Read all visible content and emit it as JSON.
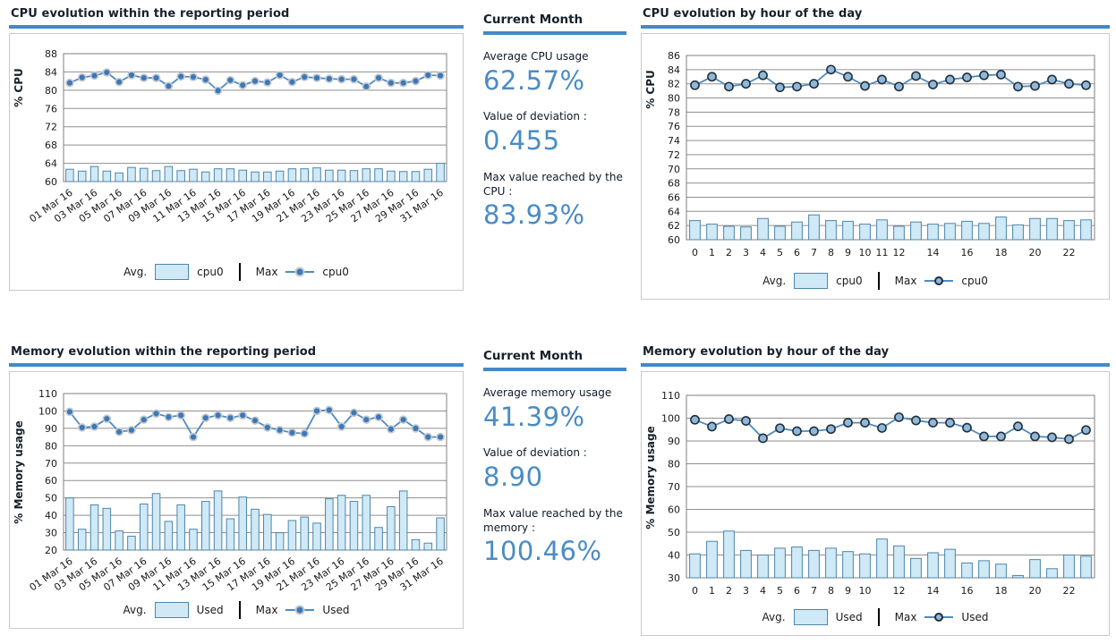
{
  "colors": {
    "accent": "#4389c7",
    "title_text": "#16202b",
    "stat_value_text": "#4a8cc4",
    "bar_fill": "#cfe9f7",
    "bar_stroke": "#4e86a8",
    "line": "#4f8bc0",
    "marker_blue": "#3c78b8",
    "marker_halo": "#c4c9ce",
    "marker_light": "#8fb8da",
    "marker_ring": "#212e3a",
    "grid": "#8f8f8f",
    "panel_border": "#c9c9c9"
  },
  "chart_data": [
    {
      "id": "cpu_period",
      "type": "bar+line",
      "title": "CPU evolution within the reporting period",
      "ylabel": "% CPU",
      "ylim": [
        60,
        88
      ],
      "ytick_step": 4,
      "grid": true,
      "legend": {
        "avg_label": "Avg.",
        "max_label": "Max",
        "position": "bottom"
      },
      "categories": [
        "01 Mar 16",
        "02 Mar 16",
        "03 Mar 16",
        "04 Mar 16",
        "05 Mar 16",
        "06 Mar 16",
        "07 Mar 16",
        "08 Mar 16",
        "09 Mar 16",
        "10 Mar 16",
        "11 Mar 16",
        "12 Mar 16",
        "13 Mar 16",
        "14 Mar 16",
        "15 Mar 16",
        "16 Mar 16",
        "17 Mar 16",
        "18 Mar 16",
        "19 Mar 16",
        "20 Mar 16",
        "21 Mar 16",
        "22 Mar 16",
        "23 Mar 16",
        "24 Mar 16",
        "25 Mar 16",
        "26 Mar 16",
        "27 Mar 16",
        "28 Mar 16",
        "29 Mar 16",
        "30 Mar 16",
        "31 Mar 16"
      ],
      "xtick_labels": [
        "01 Mar 16",
        "03 Mar 16",
        "05 Mar 16",
        "07 Mar 16",
        "09 Mar 16",
        "11 Mar 16",
        "13 Mar 16",
        "15 Mar 16",
        "17 Mar 16",
        "19 Mar 16",
        "21 Mar 16",
        "23 Mar 16",
        "25 Mar 16",
        "27 Mar 16",
        "29 Mar 16",
        "31 Mar 16"
      ],
      "series": [
        {
          "name": "cpu0",
          "role": "avg",
          "type": "bar",
          "values": [
            62.7,
            62.3,
            63.3,
            62.3,
            61.9,
            63.1,
            62.9,
            62.4,
            63.3,
            62.4,
            62.7,
            62.1,
            62.8,
            62.8,
            62.5,
            62.1,
            62.1,
            62.3,
            62.8,
            62.8,
            63.0,
            62.5,
            62.5,
            62.4,
            62.8,
            62.8,
            62.3,
            62.2,
            62.2,
            62.7,
            64.0
          ]
        },
        {
          "name": "cpu0",
          "role": "max",
          "type": "line",
          "values": [
            81.6,
            82.8,
            83.2,
            83.9,
            81.8,
            83.3,
            82.7,
            82.7,
            80.9,
            83.0,
            82.9,
            82.3,
            79.9,
            82.2,
            81.1,
            82.0,
            81.7,
            83.3,
            81.8,
            82.9,
            82.7,
            82.5,
            82.4,
            82.4,
            80.8,
            82.7,
            81.6,
            81.6,
            82.0,
            83.3,
            83.2
          ]
        }
      ]
    },
    {
      "id": "cpu_hour",
      "type": "bar+line",
      "title": "CPU evolution by hour of the day",
      "ylabel": "% CPU",
      "ylim": [
        60,
        86
      ],
      "ytick_step": 2,
      "grid": true,
      "legend": {
        "avg_label": "Avg.",
        "max_label": "Max",
        "position": "bottom"
      },
      "categories": [
        "0",
        "1",
        "2",
        "3",
        "4",
        "5",
        "6",
        "7",
        "8",
        "9",
        "10",
        "11",
        "12",
        "13",
        "14",
        "15",
        "16",
        "17",
        "18",
        "19",
        "20",
        "21",
        "22",
        "23"
      ],
      "xtick_labels": [
        "0",
        "1",
        "2",
        "3",
        "4",
        "5",
        "6",
        "7",
        "8",
        "9",
        "10",
        "11",
        "12",
        "14",
        "16",
        "18",
        "20",
        "22"
      ],
      "series": [
        {
          "name": "cpu0",
          "role": "avg",
          "type": "bar",
          "values": [
            62.7,
            62.2,
            61.9,
            61.8,
            63.0,
            61.9,
            62.5,
            63.5,
            62.7,
            62.6,
            62.2,
            62.8,
            61.9,
            62.5,
            62.2,
            62.3,
            62.6,
            62.3,
            63.2,
            62.1,
            63.0,
            63.0,
            62.7,
            62.8
          ]
        },
        {
          "name": "cpu0",
          "role": "max",
          "type": "line",
          "values": [
            81.8,
            83.0,
            81.6,
            82.0,
            83.2,
            81.5,
            81.6,
            82.0,
            84.0,
            83.0,
            81.7,
            82.6,
            81.6,
            83.1,
            81.9,
            82.6,
            82.9,
            83.2,
            83.3,
            81.6,
            81.7,
            82.6,
            82.0,
            81.8
          ]
        }
      ]
    },
    {
      "id": "mem_period",
      "type": "bar+line",
      "title": "Memory evolution within the reporting period",
      "ylabel": "% Memory usage",
      "ylim": [
        20,
        110
      ],
      "ytick_step": 10,
      "grid": true,
      "legend": {
        "avg_label": "Avg.",
        "max_label": "Max",
        "position": "bottom"
      },
      "categories": [
        "01 Mar 16",
        "02 Mar 16",
        "03 Mar 16",
        "04 Mar 16",
        "05 Mar 16",
        "06 Mar 16",
        "07 Mar 16",
        "08 Mar 16",
        "09 Mar 16",
        "10 Mar 16",
        "11 Mar 16",
        "12 Mar 16",
        "13 Mar 16",
        "14 Mar 16",
        "15 Mar 16",
        "16 Mar 16",
        "17 Mar 16",
        "18 Mar 16",
        "19 Mar 16",
        "20 Mar 16",
        "21 Mar 16",
        "22 Mar 16",
        "23 Mar 16",
        "24 Mar 16",
        "25 Mar 16",
        "26 Mar 16",
        "27 Mar 16",
        "28 Mar 16",
        "29 Mar 16",
        "30 Mar 16",
        "31 Mar 16"
      ],
      "xtick_labels": [
        "01 Mar 16",
        "03 Mar 16",
        "05 Mar 16",
        "07 Mar 16",
        "09 Mar 16",
        "11 Mar 16",
        "13 Mar 16",
        "15 Mar 16",
        "17 Mar 16",
        "19 Mar 16",
        "21 Mar 16",
        "23 Mar 16",
        "25 Mar 16",
        "27 Mar 16",
        "29 Mar 16",
        "31 Mar 16"
      ],
      "series": [
        {
          "name": "Used",
          "role": "avg",
          "type": "bar",
          "values": [
            50,
            32,
            46,
            44,
            31,
            28,
            46.5,
            52.5,
            36.5,
            46,
            32,
            48,
            54,
            38,
            50.5,
            43.5,
            40.5,
            30,
            37,
            39,
            35.5,
            49.5,
            51.5,
            48,
            51.5,
            33,
            45,
            54,
            26,
            24,
            38.5
          ]
        },
        {
          "name": "Used",
          "role": "max",
          "type": "line",
          "values": [
            99.5,
            90.5,
            91,
            95.5,
            88,
            89,
            95,
            98.5,
            96.5,
            97.5,
            85,
            96,
            97.5,
            96,
            97.5,
            94.5,
            90.5,
            89,
            87.5,
            87,
            100,
            100.5,
            91,
            99,
            95,
            96.5,
            89.5,
            95,
            90,
            85,
            85
          ]
        }
      ]
    },
    {
      "id": "mem_hour",
      "type": "bar+line",
      "title": "Memory evolution by hour of the day",
      "ylabel": "% Memory usage",
      "ylim": [
        30,
        110
      ],
      "ytick_step": 10,
      "grid": true,
      "legend": {
        "avg_label": "Avg.",
        "max_label": "Max",
        "position": "bottom"
      },
      "categories": [
        "0",
        "1",
        "2",
        "3",
        "4",
        "5",
        "6",
        "7",
        "8",
        "9",
        "10",
        "11",
        "12",
        "13",
        "14",
        "15",
        "16",
        "17",
        "18",
        "19",
        "20",
        "21",
        "22",
        "23"
      ],
      "xtick_labels": [
        "0",
        "1",
        "2",
        "3",
        "4",
        "5",
        "6",
        "7",
        "8",
        "9",
        "10",
        "12",
        "14",
        "16",
        "18",
        "20",
        "22"
      ],
      "series": [
        {
          "name": "Used",
          "role": "avg",
          "type": "bar",
          "values": [
            40.5,
            46,
            50.5,
            42,
            40,
            43,
            43.5,
            42,
            43,
            41.5,
            40.5,
            47,
            44,
            38.5,
            41,
            42.5,
            36.5,
            37.5,
            36,
            31,
            38,
            34,
            40,
            39.5
          ]
        },
        {
          "name": "Used",
          "role": "max",
          "type": "line",
          "values": [
            99.3,
            96.3,
            99.6,
            98.8,
            91.2,
            95.6,
            94.3,
            94.3,
            95.2,
            98,
            98,
            95.7,
            100.4,
            99,
            98,
            98,
            95.8,
            92,
            92,
            96.4,
            92,
            91.6,
            90.8,
            94.8
          ]
        }
      ]
    }
  ],
  "panels": [
    {
      "title": "Current Month",
      "items": [
        {
          "label": "Average CPU usage",
          "value": "62.57%"
        },
        {
          "label": "Value of deviation :",
          "value": "0.455"
        },
        {
          "label": "Max value reached by the CPU :",
          "value": "83.93%"
        }
      ]
    },
    {
      "title": "Current Month",
      "items": [
        {
          "label": "Average memory usage",
          "value": "41.39%"
        },
        {
          "label": "Value of deviation :",
          "value": "8.90"
        },
        {
          "label": "Max value reached by the memory :",
          "value": "100.46%"
        }
      ]
    }
  ]
}
